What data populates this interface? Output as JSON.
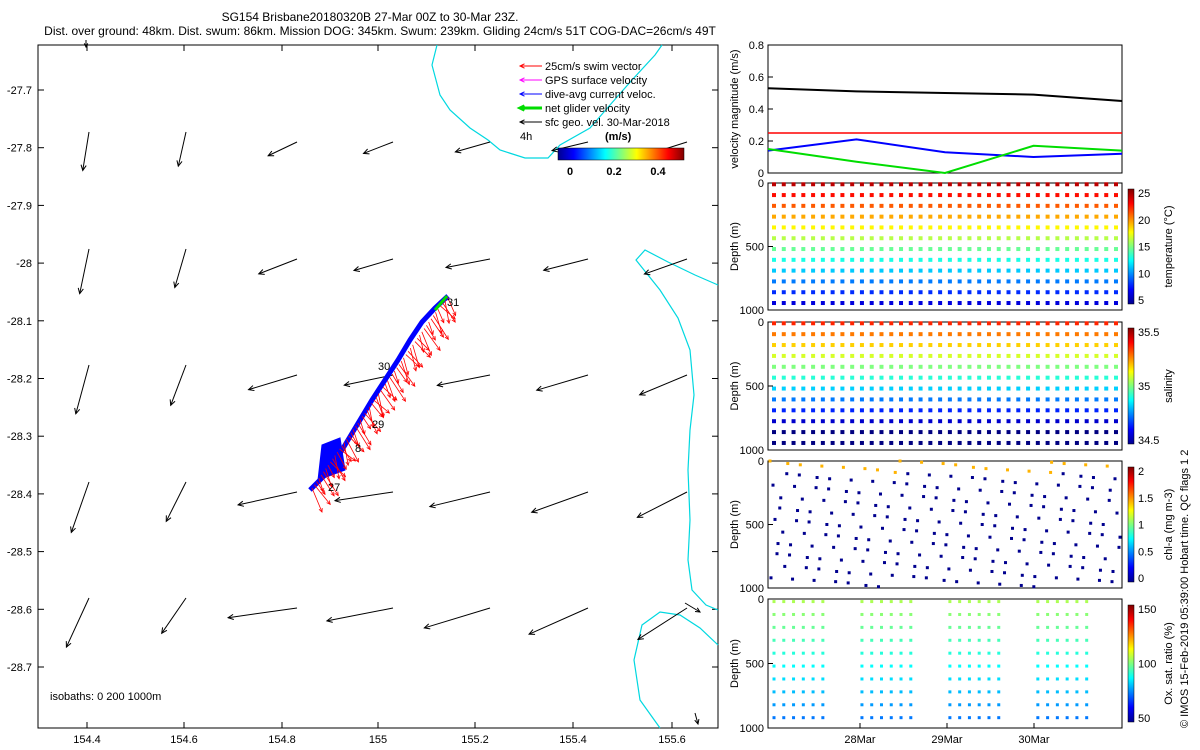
{
  "header": {
    "line1": "SG154 Brisbane20180320B 27-Mar 00Z to 30-Mar 23Z.",
    "line2": "Dist. over ground: 48km. Dist. swum: 86km. Mission DOG: 345km. Swum: 239km. Gliding 24cm/s 51T COG-DAC=26cm/s 49T"
  },
  "map": {
    "x_ticks": [
      "154.4",
      "154.6",
      "154.8",
      "155",
      "155.2",
      "155.4",
      "155.6"
    ],
    "y_ticks": [
      "-27.7",
      "-27.8",
      "-27.9",
      "-28",
      "-28.1",
      "-28.2",
      "-28.3",
      "-28.4",
      "-28.5",
      "-28.6",
      "-28.7"
    ],
    "legend": [
      {
        "label": "25cm/s swim vector",
        "color": "#ff0000"
      },
      {
        "label": "GPS surface velocity",
        "color": "#ff00ff"
      },
      {
        "label": "dive-avg current veloc.",
        "color": "#0000ff"
      },
      {
        "label": "net glider velocity",
        "color": "#00dd00"
      },
      {
        "label": "sfc geo. vel. 30-Mar-2018",
        "color": "#000000"
      }
    ],
    "interval_label": "4h",
    "colorbar_title": "(m/s)",
    "colorbar_ticks": [
      "0",
      "0.2",
      "0.4"
    ],
    "day_labels": [
      "31",
      "30",
      "29",
      "8",
      "27"
    ],
    "isobath_label": "isobaths: 0   200  1000m"
  },
  "chart_data": [
    {
      "type": "line",
      "title": "",
      "ylabel": "velocity magnitude (m/s)",
      "ylim": [
        0,
        0.8
      ],
      "yticks": [
        "0",
        "0.2",
        "0.4",
        "0.6",
        "0.8"
      ],
      "x": [
        "27-Mar 00Z",
        "28-Mar 00Z",
        "29-Mar 00Z",
        "30-Mar 00Z",
        "30-Mar 23Z"
      ],
      "series": [
        {
          "name": "surface speed (black)",
          "values": [
            0.53,
            0.51,
            0.5,
            0.49,
            0.45
          ]
        },
        {
          "name": "25cm/s reference (red)",
          "values": [
            0.25,
            0.25,
            0.25,
            0.25,
            0.25
          ]
        },
        {
          "name": "dive-avg current (blue)",
          "values": [
            0.14,
            0.21,
            0.13,
            0.1,
            0.12
          ]
        },
        {
          "name": "net glider velocity (green)",
          "values": [
            0.15,
            0.07,
            0.0,
            0.17,
            0.14
          ]
        }
      ]
    },
    {
      "type": "scatter",
      "ylabel": "Depth (m)",
      "yticks": [
        "0",
        "500",
        "1000"
      ],
      "colorbar_label": "temperature (°C)",
      "colorbar_ticks": [
        "5",
        "10",
        "15",
        "20",
        "25"
      ]
    },
    {
      "type": "scatter",
      "ylabel": "Depth (m)",
      "yticks": [
        "0",
        "500",
        "1000"
      ],
      "colorbar_label": "salinity",
      "colorbar_ticks": [
        "34.5",
        "35",
        "35.5"
      ]
    },
    {
      "type": "scatter",
      "ylabel": "Depth (m)",
      "yticks": [
        "0",
        "500",
        "1000"
      ],
      "colorbar_label": "chl-a (mg m-3)",
      "colorbar_ticks": [
        "0",
        "0.5",
        "1",
        "1.5",
        "2"
      ]
    },
    {
      "type": "scatter",
      "ylabel": "Depth (m)",
      "yticks": [
        "0",
        "500",
        "1000"
      ],
      "colorbar_label": "Ox. sat. ratio (%)",
      "colorbar_ticks": [
        "50",
        "100",
        "150"
      ],
      "xticks": [
        "28Mar",
        "29Mar",
        "30Mar"
      ]
    }
  ],
  "footer": {
    "side_credit": "© IMOS 15-Feb-2019 05:39:00 Hobart time. QC flags 1  2"
  }
}
